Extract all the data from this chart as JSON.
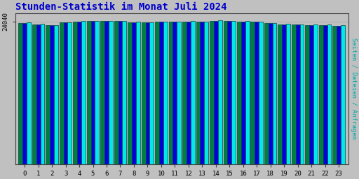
{
  "title": "Stunden-Statistik im Monat Juli 2024",
  "title_color": "#0000cc",
  "ylabel_right": "Seiten / Dateien / Anfragen",
  "hours": [
    0,
    1,
    2,
    3,
    4,
    5,
    6,
    7,
    8,
    9,
    10,
    11,
    12,
    13,
    14,
    15,
    16,
    17,
    18,
    19,
    20,
    21,
    22,
    23
  ],
  "seiten": [
    23800,
    23600,
    23450,
    23900,
    24050,
    24100,
    24120,
    24150,
    23950,
    23900,
    24020,
    24040,
    24060,
    24010,
    24200,
    24130,
    24080,
    24020,
    23750,
    23600,
    23580,
    23480,
    23480,
    23380
  ],
  "dateien": [
    23820,
    23620,
    23460,
    23910,
    24060,
    24105,
    24125,
    24155,
    23960,
    23910,
    24025,
    24045,
    24065,
    24020,
    24210,
    24135,
    24085,
    24025,
    23760,
    23610,
    23590,
    23490,
    23490,
    23390
  ],
  "anfragen": [
    23900,
    23700,
    23500,
    23980,
    24100,
    24140,
    24160,
    24200,
    24010,
    23960,
    24060,
    24080,
    24100,
    24060,
    24250,
    24170,
    24120,
    24060,
    23800,
    23640,
    23620,
    23520,
    23520,
    23420
  ],
  "bar_width": 0.3,
  "color_seiten": "#008040",
  "color_dateien": "#0000dd",
  "color_anfragen": "#00e8e8",
  "bg_color": "#c0c0c0",
  "plot_bg_color": "#c0c0c0",
  "ytick_val": 24040,
  "ytick_label": "24040",
  "ylim_min": 0,
  "ylim_max": 25500,
  "font": "monospace",
  "edge_color": "#004444"
}
